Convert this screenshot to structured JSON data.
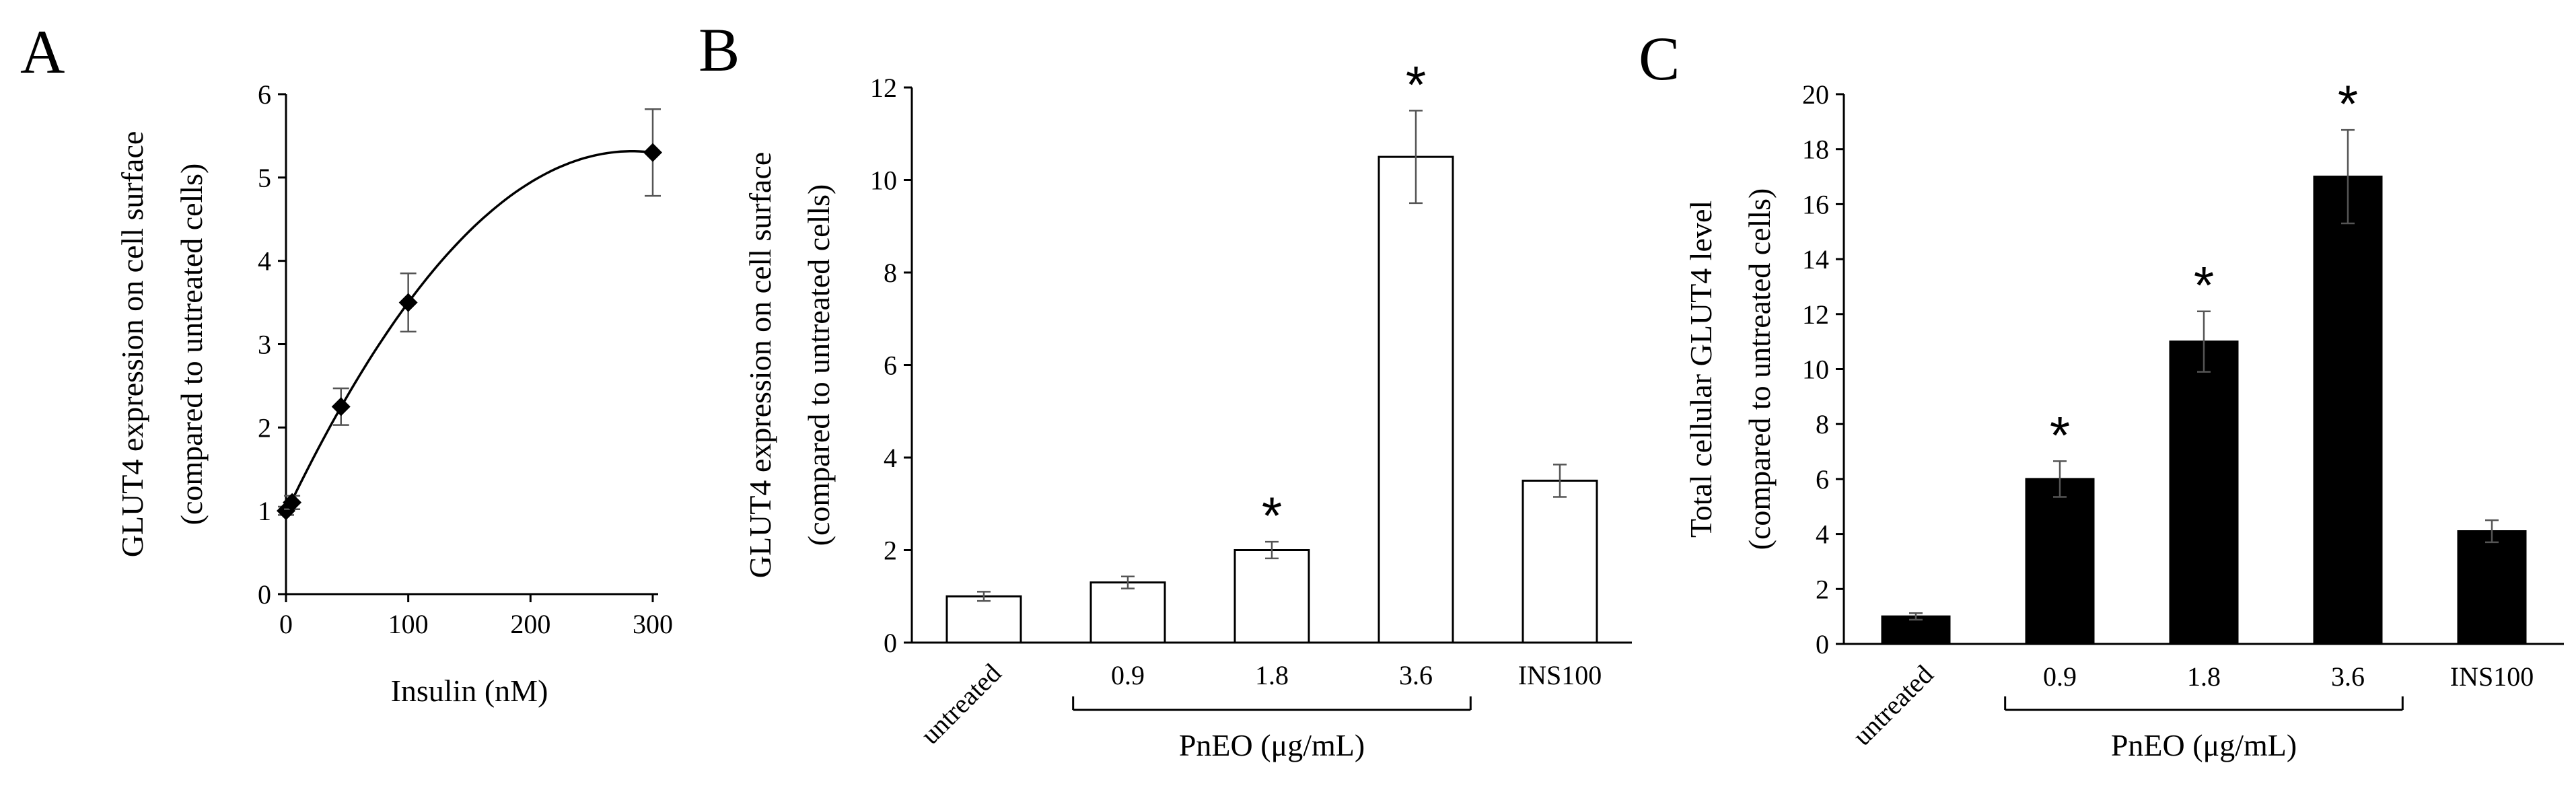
{
  "chart_data": [
    {
      "panel": "A",
      "type": "scatter",
      "title": "",
      "xlabel": "Insulin (nM)",
      "ylabel": [
        "GLUT4 expression on cell surface",
        "(compared to untreated cells)"
      ],
      "xlim": [
        0,
        300
      ],
      "ylim": [
        0,
        6
      ],
      "xticks": [
        "0",
        "100",
        "200",
        "300"
      ],
      "yticks": [
        "0",
        "1",
        "2",
        "3",
        "4",
        "5",
        "6"
      ],
      "trendline": true,
      "grid": false,
      "series": [
        {
          "x": [
            0,
            5,
            45,
            100,
            300
          ],
          "y": [
            1.0,
            1.1,
            2.25,
            3.5,
            5.3
          ],
          "error": [
            0.05,
            0.08,
            0.22,
            0.35,
            0.52
          ]
        }
      ]
    },
    {
      "panel": "B",
      "type": "bar",
      "title": "",
      "ylabel": [
        "GLUT4 expression on cell surface",
        "(compared to untreated cells)"
      ],
      "ylim": [
        0,
        12
      ],
      "yticks": [
        "0",
        "2",
        "4",
        "6",
        "8",
        "10",
        "12"
      ],
      "categories": [
        "untreated",
        "0.9",
        "1.8",
        "3.6",
        "INS100"
      ],
      "values": [
        1.0,
        1.3,
        2.0,
        10.5,
        3.5
      ],
      "error": [
        0.1,
        0.13,
        0.18,
        1.0,
        0.35
      ],
      "significant": [
        false,
        false,
        true,
        true,
        false
      ],
      "significance_marker": "*",
      "group_label": "PnEO (μg/mL)",
      "bar_fill": "#ffffff",
      "bar_stroke": "#000000",
      "grid": false
    },
    {
      "panel": "C",
      "type": "bar",
      "title": "",
      "ylabel": [
        "Total cellular GLUT4 level",
        "(compared to untreated cells)"
      ],
      "ylim": [
        0,
        20
      ],
      "yticks": [
        "0",
        "2",
        "4",
        "6",
        "8",
        "10",
        "12",
        "14",
        "16",
        "18",
        "20"
      ],
      "categories": [
        "untreated",
        "0.9",
        "1.8",
        "3.6",
        "INS100"
      ],
      "values": [
        1.0,
        6.0,
        11.0,
        17.0,
        4.1
      ],
      "error": [
        0.12,
        0.65,
        1.1,
        1.7,
        0.4
      ],
      "significant": [
        false,
        true,
        true,
        true,
        false
      ],
      "significance_marker": "*",
      "group_label": "PnEO (μg/mL)",
      "bar_fill": "#000000",
      "bar_stroke": "#000000",
      "grid": false
    }
  ]
}
